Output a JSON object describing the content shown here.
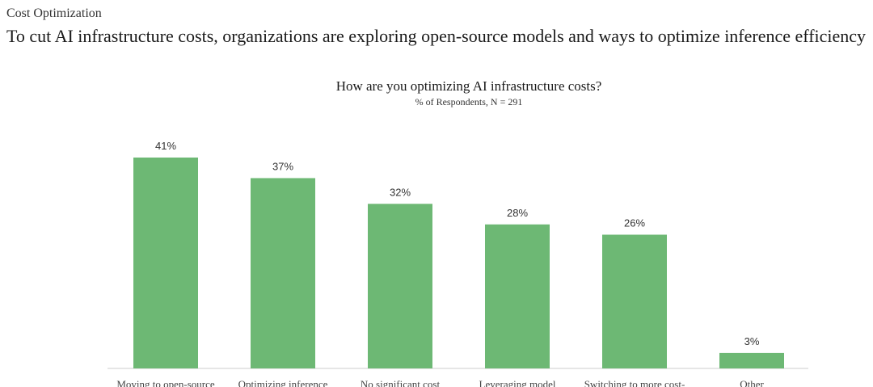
{
  "header": {
    "eyebrow": "Cost Optimization",
    "headline": "To cut AI infrastructure costs, organizations are exploring open-source models and ways to optimize inference efficiency"
  },
  "colors": {
    "bar": "#6db874",
    "axis": "#cccccc"
  },
  "chart_data": {
    "type": "bar",
    "title": "How are you optimizing AI infrastructure costs?",
    "subtitle": "% of Respondents, N = 291",
    "categories": [
      "Moving to open-source",
      "Optimizing inference",
      "No significant cost",
      "Leveraging model",
      "Switching to more cost-",
      "Other"
    ],
    "values": [
      41,
      37,
      32,
      28,
      26,
      3
    ],
    "value_labels": [
      "41%",
      "37%",
      "32%",
      "28%",
      "26%",
      "3%"
    ],
    "unit": "%",
    "ylim": [
      0,
      41
    ],
    "grid": false,
    "legend": "none"
  }
}
